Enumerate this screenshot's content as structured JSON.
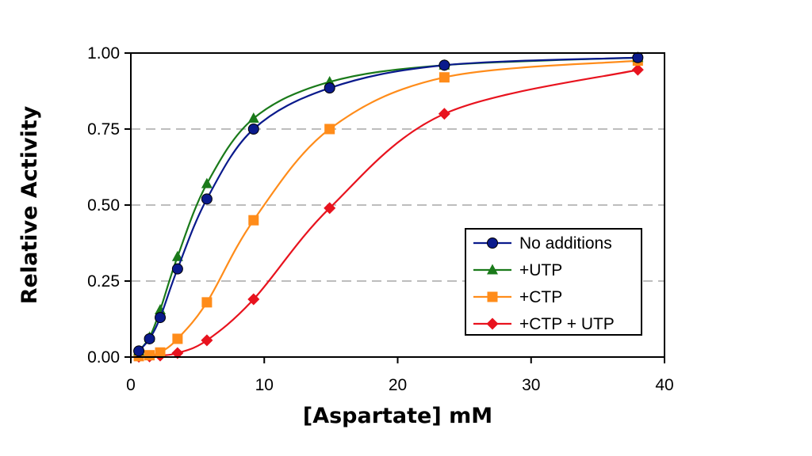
{
  "chart_data": {
    "type": "line",
    "title": "",
    "xlabel": "[Aspartate] mM",
    "ylabel": "Relative Activity",
    "xlim": [
      0,
      40
    ],
    "ylim": [
      0,
      1
    ],
    "x_ticks": [
      "0",
      "10",
      "20",
      "30",
      "40"
    ],
    "x_tick_values": [
      0,
      10,
      20,
      30,
      40
    ],
    "y_ticks": [
      "0.00",
      "0.25",
      "0.50",
      "0.75",
      "1.00"
    ],
    "y_tick_values": [
      0,
      0.25,
      0.5,
      0.75,
      1.0
    ],
    "grid": "horizontal dashed",
    "legend_position": "bottom-right",
    "series": [
      {
        "name": "No additions",
        "color": "#0a1a8c",
        "marker": "circle",
        "points": [
          [
            0.6,
            0.02
          ],
          [
            1.4,
            0.06
          ],
          [
            2.2,
            0.13
          ],
          [
            3.5,
            0.29
          ],
          [
            5.7,
            0.52
          ],
          [
            9.2,
            0.75
          ],
          [
            14.9,
            0.885
          ],
          [
            23.5,
            0.96
          ],
          [
            38,
            0.985
          ]
        ]
      },
      {
        "name": "+UTP",
        "color": "#1a7a1a",
        "marker": "triangle",
        "points": [
          [
            0.6,
            0.02
          ],
          [
            1.4,
            0.065
          ],
          [
            2.2,
            0.155
          ],
          [
            3.5,
            0.33
          ],
          [
            5.7,
            0.57
          ],
          [
            9.2,
            0.785
          ],
          [
            14.9,
            0.905
          ],
          [
            23.5,
            0.96
          ],
          [
            38,
            0.985
          ]
        ]
      },
      {
        "name": "+CTP",
        "color": "#ff8c1a",
        "marker": "square",
        "points": [
          [
            0.6,
            0.003
          ],
          [
            1.4,
            0.006
          ],
          [
            2.2,
            0.015
          ],
          [
            3.5,
            0.06
          ],
          [
            5.7,
            0.18
          ],
          [
            9.2,
            0.45
          ],
          [
            14.9,
            0.75
          ],
          [
            23.5,
            0.92
          ],
          [
            38,
            0.975
          ]
        ]
      },
      {
        "name": "+CTP + UTP",
        "color": "#e8131e",
        "marker": "diamond",
        "points": [
          [
            0.6,
            0.001
          ],
          [
            1.4,
            0.002
          ],
          [
            2.2,
            0.005
          ],
          [
            3.5,
            0.013
          ],
          [
            5.7,
            0.055
          ],
          [
            9.2,
            0.19
          ],
          [
            14.9,
            0.49
          ],
          [
            23.5,
            0.8
          ],
          [
            38,
            0.945
          ]
        ]
      }
    ]
  }
}
